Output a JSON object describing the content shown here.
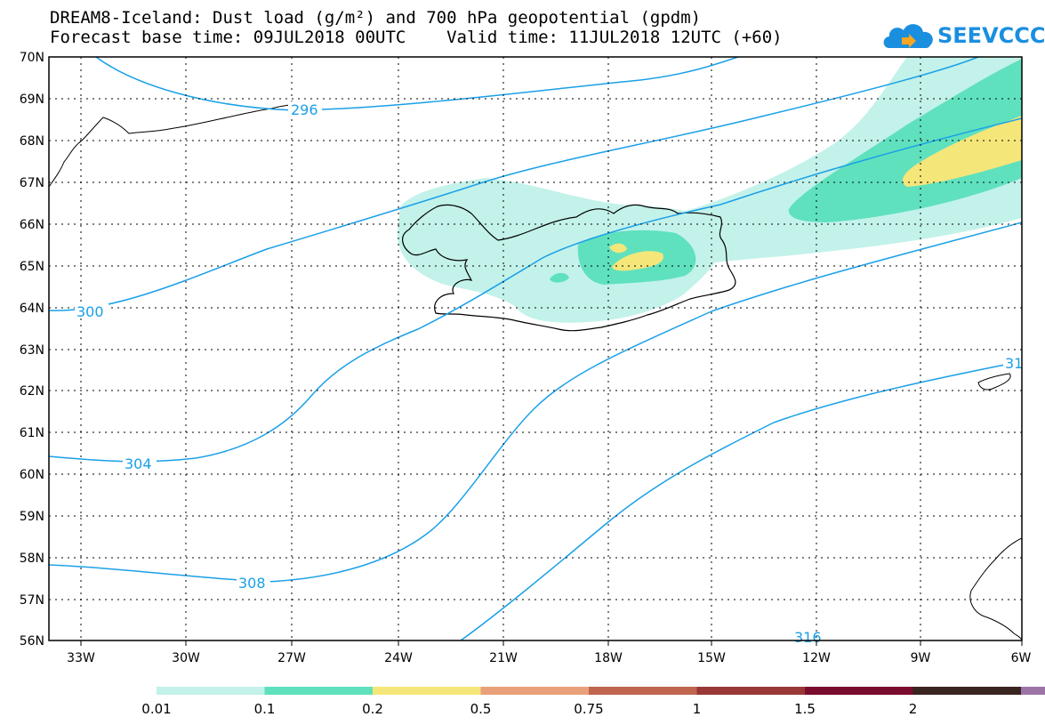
{
  "title_line1": "DREAM8-Iceland: Dust load (g/m²) and 700 hPa geopotential (gpdm)",
  "title_line2": "Forecast base time: 09JUL2018 00UTC    Valid time: 11JUL2018 12UTC (+60)",
  "logo": {
    "text": "SEEVCCC",
    "icon": "cloud-icon",
    "color": "#1a8fe0"
  },
  "lat_labels": [
    "70N",
    "69N",
    "68N",
    "67N",
    "66N",
    "65N",
    "64N",
    "63N",
    "62N",
    "61N",
    "60N",
    "59N",
    "58N",
    "57N",
    "56N"
  ],
  "lon_labels": [
    "33W",
    "30W",
    "27W",
    "24W",
    "21W",
    "18W",
    "15W",
    "12W",
    "9W",
    "6W"
  ],
  "contour_labels": [
    "296",
    "300",
    "304",
    "308",
    "316",
    "31"
  ],
  "colorbar": {
    "colors": [
      "#c3f2ea",
      "#5fe1be",
      "#f5e67a",
      "#e8a07a",
      "#c0654e",
      "#9a3838",
      "#7a0c2e",
      "#3a2420",
      "#9c74a8"
    ],
    "labels": [
      "0.01",
      "0.1",
      "0.2",
      "0.5",
      "0.75",
      "1",
      "1.5",
      "2"
    ]
  }
}
